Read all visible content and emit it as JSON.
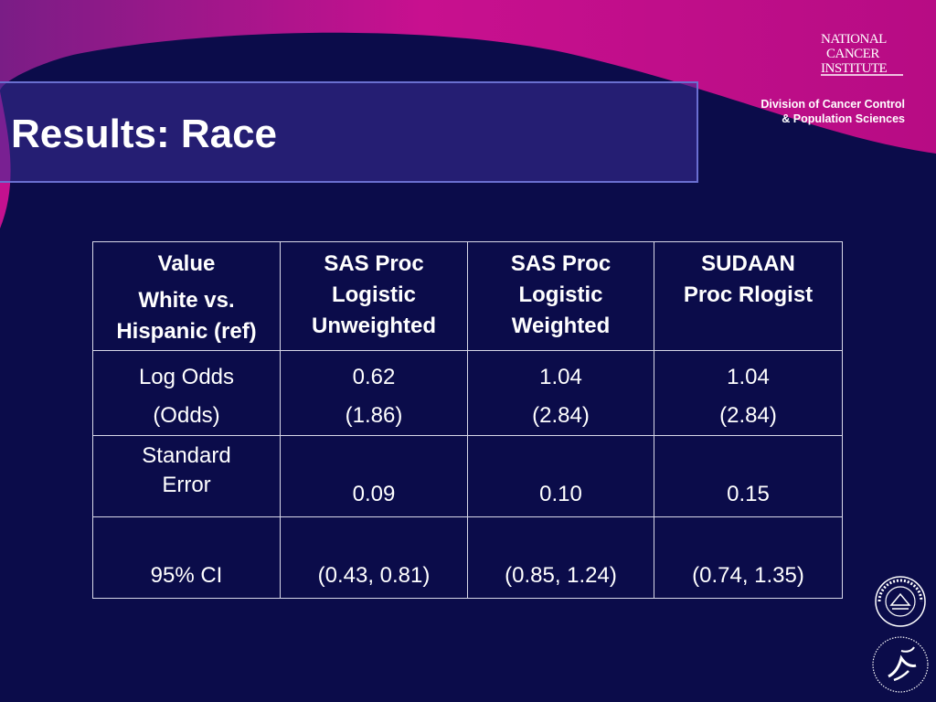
{
  "title": "Results: Race",
  "branding": {
    "nci_logo_text": "NATIONAL CANCER INSTITUTE",
    "division_line1": "Division of Cancer Control",
    "division_line2": "& Population Sciences",
    "nih_seal_text": "NATIONAL INSTITUTES OF HEALTH",
    "hhs_seal_text": "DEPARTMENT OF HEALTH & HUMAN SERVICES"
  },
  "colors": {
    "background": "#0b0c4a",
    "accent_magenta": "#c4118f",
    "title_bar": "#3c2d96",
    "table_border": "#d8d8e8"
  },
  "table": {
    "header": [
      [
        "Value",
        "White vs. Hispanic (ref)"
      ],
      [
        "SAS Proc",
        "Logistic",
        "Unweighted"
      ],
      [
        "SAS Proc",
        "Logistic",
        "Weighted"
      ],
      [
        "SUDAAN",
        "Proc Rlogist"
      ]
    ],
    "rows": [
      {
        "label": [
          "Log Odds",
          "(Odds)"
        ],
        "values": [
          [
            "0.62",
            "(1.86)"
          ],
          [
            "1.04",
            "(2.84)"
          ],
          [
            "1.04",
            "(2.84)"
          ]
        ]
      },
      {
        "label": [
          "Standard",
          "Error"
        ],
        "values": [
          [
            "0.09"
          ],
          [
            "0.10"
          ],
          [
            "0.15"
          ]
        ]
      },
      {
        "label": [
          "95% CI"
        ],
        "values": [
          [
            "(0.43, 0.81)"
          ],
          [
            "(0.85, 1.24)"
          ],
          [
            "(0.74, 1.35)"
          ]
        ]
      }
    ]
  }
}
